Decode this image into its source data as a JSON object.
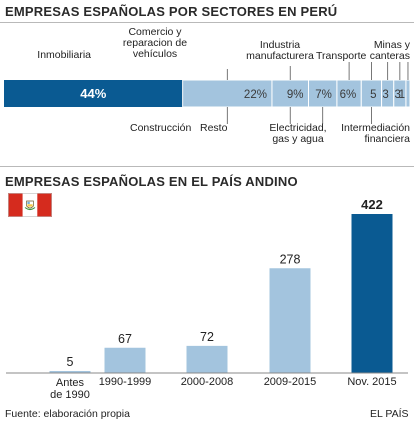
{
  "sectors_title": "EMPRESAS ESPAÑOLAS POR SECTORES EN PERÚ",
  "andino_title": "EMPRESAS ESPAÑOLAS EN EL PAÍS ANDINO",
  "footer": {
    "source": "Fuente: elaboración propia",
    "brand": "EL PAÍS"
  },
  "flag": {
    "red": "#d52b1e",
    "white": "#ffffff",
    "emblem": "coat-of-arms"
  },
  "colors": {
    "dark_blue": "#0a5a92",
    "light_blue": "#a3c4de"
  },
  "chart_data": [
    {
      "type": "bar",
      "orientation": "horizontal-stacked",
      "title": "EMPRESAS ESPAÑOLAS POR SECTORES EN PERÚ",
      "unit": "%",
      "segments": [
        {
          "label": "Inmobiliaria",
          "value": 44,
          "display": "44%"
        },
        {
          "label": "Construcción",
          "value": 22,
          "display": "22%"
        },
        {
          "label": "Resto",
          "value": 9,
          "display": "9%"
        },
        {
          "label": "Electricidad, gas y agua",
          "value": 7,
          "display": "7%"
        },
        {
          "label": "Comercio y reparación de vehículos",
          "value": 6,
          "display": "6%"
        },
        {
          "label": "Industria manufacturera",
          "value": 5,
          "display": "5"
        },
        {
          "label": "Intermediación financiera",
          "value": 3,
          "display": "3"
        },
        {
          "label": "Transporte",
          "value": 3,
          "display": "3"
        },
        {
          "label": "Minas y canteras",
          "value": 1,
          "display": "1"
        }
      ]
    },
    {
      "type": "bar",
      "title": "EMPRESAS ESPAÑOLAS EN EL PAÍS ANDINO",
      "categories": [
        "Antes de 1990",
        "1990-1999",
        "2000-2008",
        "2009-2015",
        "Nov. 2015"
      ],
      "values": [
        5,
        67,
        72,
        278,
        422
      ],
      "highlight": "Nov. 2015",
      "ylim": [
        0,
        422
      ]
    }
  ]
}
